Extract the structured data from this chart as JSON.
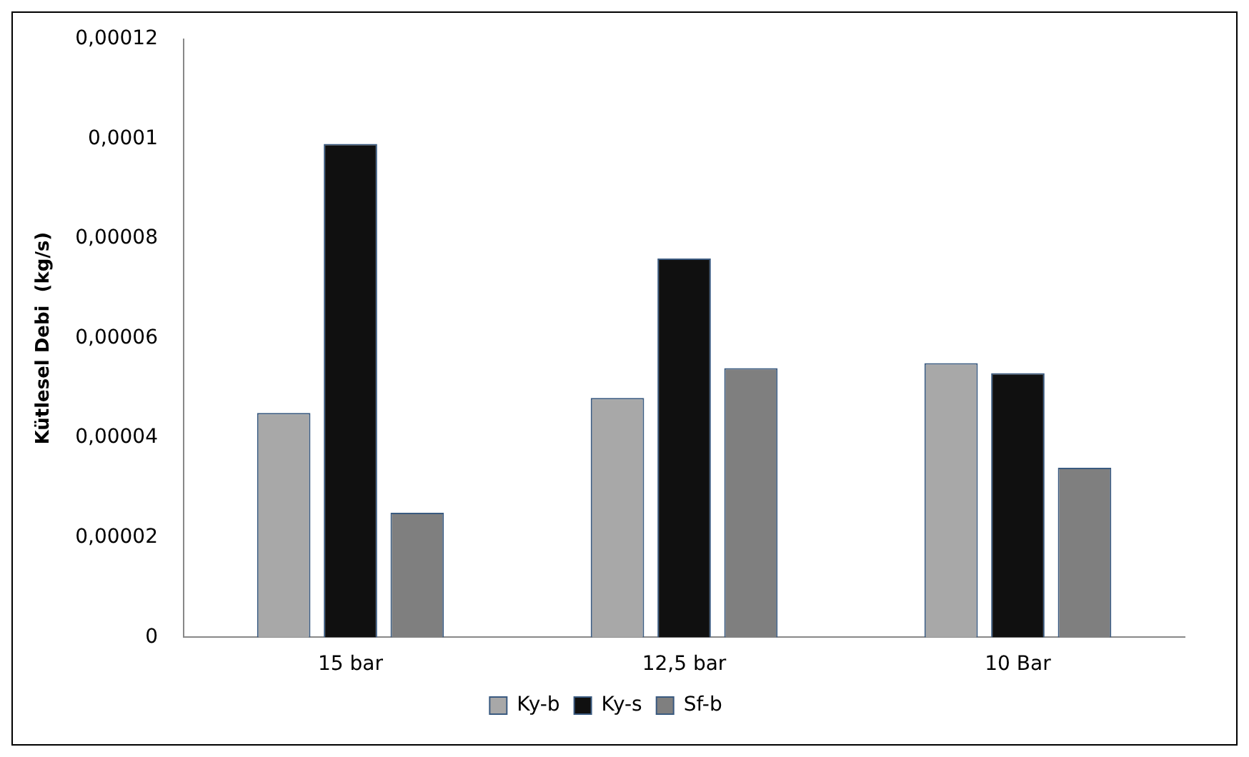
{
  "chart_data": {
    "type": "bar",
    "ylabel": "Kütlesel Debi  (kg/s)",
    "categories": [
      "15 bar",
      "12,5 bar",
      "10 Bar"
    ],
    "series": [
      {
        "name": "Ky-b",
        "color": "#a8a8a8",
        "values": [
          4.5e-05,
          4.8e-05,
          5.5e-05
        ]
      },
      {
        "name": "Ky-s",
        "color": "#101010",
        "values": [
          9.9e-05,
          7.6e-05,
          5.3e-05
        ]
      },
      {
        "name": "Sf-b",
        "color": "#7f7f7f",
        "values": [
          2.5e-05,
          5.4e-05,
          3.4e-05
        ]
      }
    ],
    "ylim": [
      0,
      0.00012
    ],
    "yticks": [
      0,
      {
        "value": 2e-05,
        "label": "0,00002"
      },
      {
        "value": 4e-05,
        "label": "0,00004"
      },
      {
        "value": 6e-05,
        "label": "0,00006"
      },
      {
        "value": 8e-05,
        "label": "0,00008"
      },
      {
        "value": 0.0001,
        "label": "0,0001"
      },
      {
        "value": 0.00012,
        "label": "0,00012"
      }
    ],
    "grid": false,
    "legend": "bottom"
  }
}
